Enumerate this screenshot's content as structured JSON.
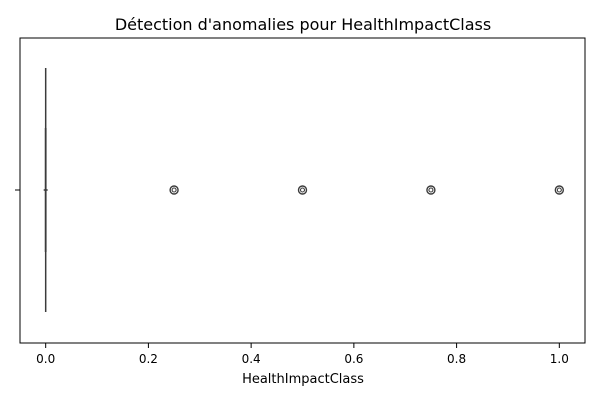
{
  "chart_data": {
    "type": "boxplot",
    "title": "Détection d'anomalies pour HealthImpactClass",
    "xlabel": "HealthImpactClass",
    "ylabel": "",
    "xlim": [
      -0.05,
      1.05
    ],
    "xticks": [
      0.0,
      0.2,
      0.4,
      0.6,
      0.8,
      1.0
    ],
    "xtick_labels": [
      "0.0",
      "0.2",
      "0.4",
      "0.6",
      "0.8",
      "1.0"
    ],
    "orientation": "horizontal",
    "grid": false,
    "box": {
      "min": 0.0,
      "q1": 0.0,
      "median": 0.0,
      "q3": 0.0,
      "max": 0.0
    },
    "outliers": [
      0.25,
      0.5,
      0.75,
      1.0
    ],
    "colors": {
      "box": "#3b3b3b",
      "outlier": "#3b3b3b",
      "axis": "#000000"
    }
  }
}
